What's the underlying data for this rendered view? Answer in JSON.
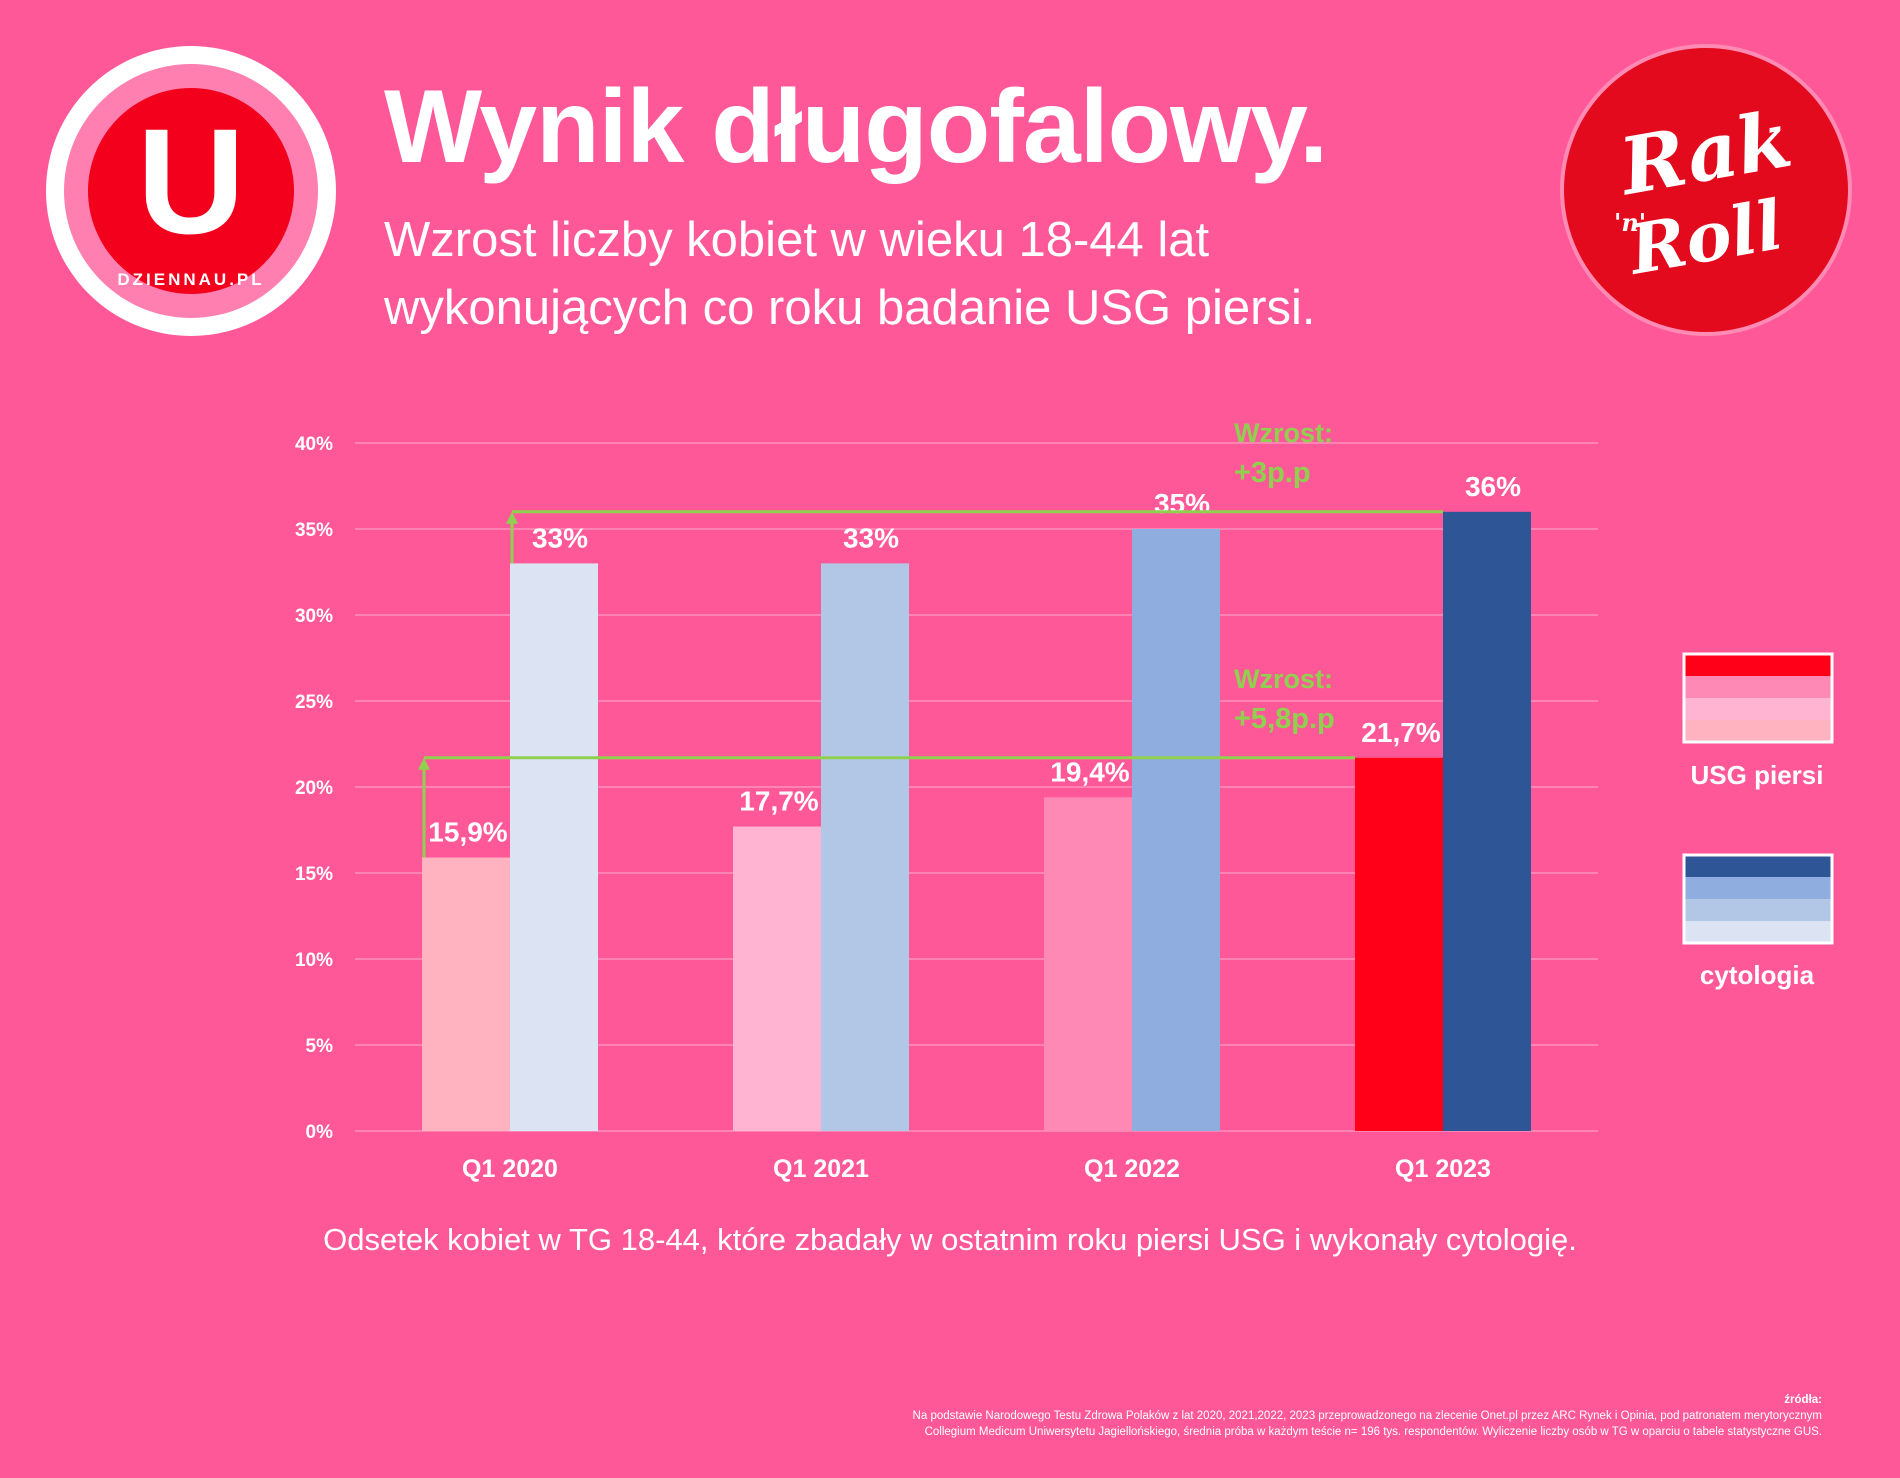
{
  "logos": {
    "left": {
      "letter": "U",
      "brand": "DZIENNAU.PL"
    },
    "right": {
      "word1": "Rak",
      "word2": "Roll",
      "connector": "'n'"
    }
  },
  "header": {
    "title": "Wynik długofalowy.",
    "subtitle_line1": "Wzrost liczby kobiet w wieku 18-44 lat",
    "subtitle_line2": "wykonujących co roku badanie USG piersi."
  },
  "chart_data": {
    "type": "bar",
    "categories": [
      "Q1 2020",
      "Q1 2021",
      "Q1 2022",
      "Q1 2023"
    ],
    "series": [
      {
        "name": "USG piersi",
        "values": [
          15.9,
          17.7,
          19.4,
          21.7
        ],
        "labels": [
          "15,9%",
          "17,7%",
          "19,4%",
          "21,7%"
        ],
        "colors": [
          "#ffb2c0",
          "#ffb4d1",
          "#ff89b5",
          "#ff0018"
        ]
      },
      {
        "name": "cytologia",
        "values": [
          33,
          33,
          35,
          36
        ],
        "labels": [
          "33%",
          "33%",
          "35%",
          "36%"
        ],
        "colors": [
          "#dce3f3",
          "#b2c6e6",
          "#8fadde",
          "#2e5595"
        ]
      }
    ],
    "ylim": [
      0,
      40
    ],
    "yticks": [
      0,
      5,
      10,
      15,
      20,
      25,
      30,
      35,
      40
    ],
    "ytick_labels": [
      "0%",
      "5%",
      "10%",
      "15%",
      "20%",
      "25%",
      "30%",
      "35%",
      "40%"
    ],
    "grid": true,
    "legend_position": "right",
    "annotations": [
      {
        "series": "USG piersi",
        "from": "Q1 2020",
        "to": "Q1 2023",
        "from_value": 15.9,
        "to_value": 21.7,
        "line1": "Wzrost:",
        "line2": "+5,8p.p"
      },
      {
        "series": "cytologia",
        "from": "Q1 2020",
        "to": "Q1 2023",
        "from_value": 33,
        "to_value": 36,
        "line1": "Wzrost:",
        "line2": "+3p.p"
      }
    ],
    "colors": {
      "annotation": "#8fd14f",
      "grid": "#ff93bd",
      "text": "#ffffff"
    }
  },
  "legend": {
    "usg": {
      "label": "USG piersi",
      "swatches": [
        "#ff0018",
        "#ff89b5",
        "#ffb4d1",
        "#ffb2c0"
      ]
    },
    "cyto": {
      "label": "cytologia",
      "swatches": [
        "#2e5595",
        "#8fadde",
        "#b2c6e6",
        "#dce3f3"
      ]
    }
  },
  "caption": "Odsetek kobiet w TG 18-44, które zbadały w ostatnim roku piersi USG i wykonały cytologię.",
  "source": {
    "heading": "źródła:",
    "line1": "Na podstawie Narodowego Testu Zdrowa Polaków z lat 2020, 2021,2022, 2023 przeprowadzonego na zlecenie Onet.pl przez ARC Rynek i Opinia, pod patronatem merytorycznym",
    "line2": "Collegium Medicum Uniwersytetu Jagiellońskiego, średnia próba w każdym teście n= 196 tys. respondentów. Wyliczenie liczby osób w TG w oparciu o tabele statystyczne GUS."
  }
}
